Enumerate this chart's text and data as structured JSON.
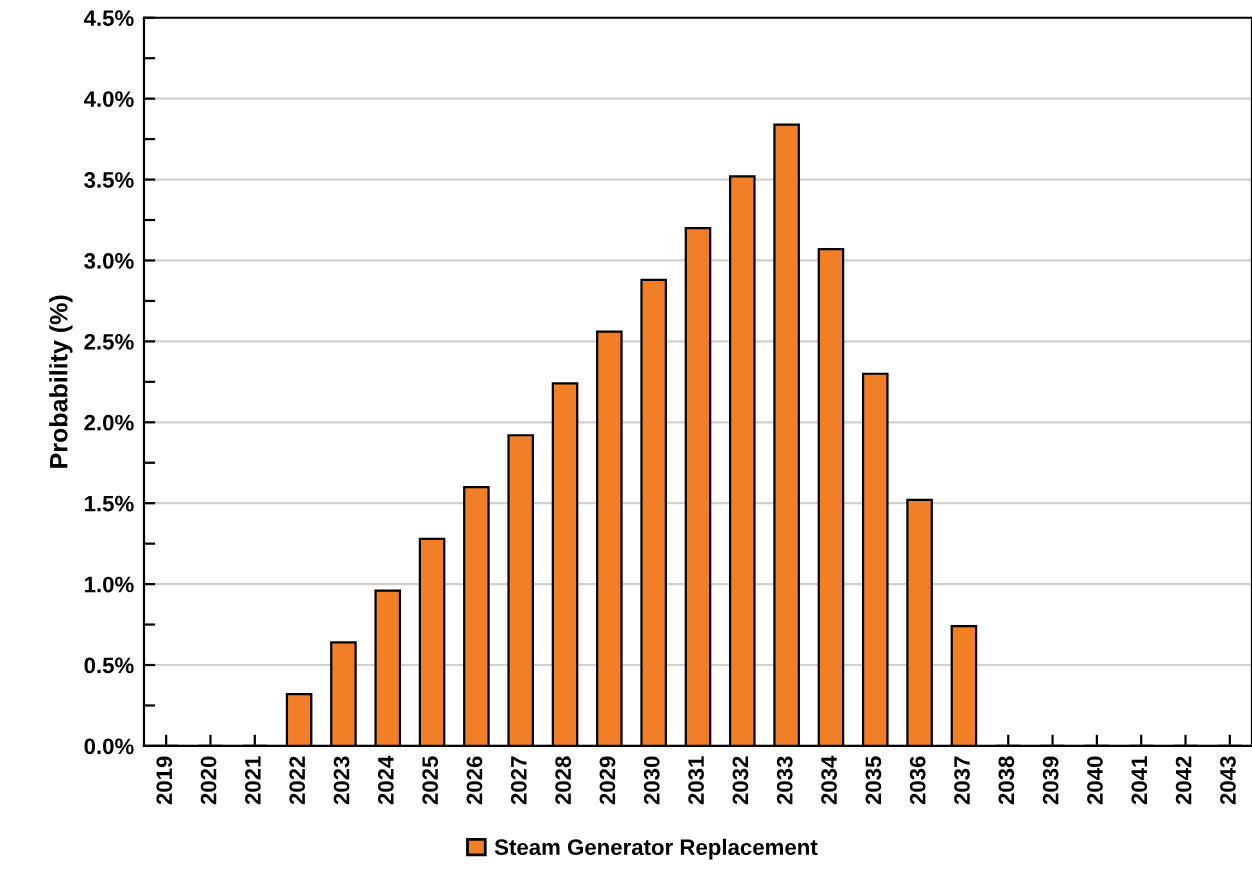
{
  "chart_data": {
    "type": "bar",
    "ylabel": "Probability (%)",
    "categories": [
      "2019",
      "2020",
      "2021",
      "2022",
      "2023",
      "2024",
      "2025",
      "2026",
      "2027",
      "2028",
      "2029",
      "2030",
      "2031",
      "2032",
      "2033",
      "2034",
      "2035",
      "2036",
      "2037",
      "2038",
      "2039",
      "2040",
      "2041",
      "2042",
      "2043"
    ],
    "series": [
      {
        "name": "Steam Generator Replacement",
        "color": "#f07f27",
        "values": [
          0,
          0,
          0,
          0.32,
          0.64,
          0.96,
          1.28,
          1.6,
          1.92,
          2.24,
          2.56,
          2.88,
          3.2,
          3.52,
          3.84,
          3.07,
          2.3,
          1.52,
          0.74,
          0,
          0,
          0,
          0,
          0,
          0
        ]
      }
    ],
    "ylim": [
      0,
      4.5
    ],
    "yticks": [
      {
        "value": 0,
        "label": "0.0%"
      },
      {
        "value": 0.25,
        "label": null
      },
      {
        "value": 0.5,
        "label": "0.5%"
      },
      {
        "value": 0.75,
        "label": null
      },
      {
        "value": 1,
        "label": "1.0%"
      },
      {
        "value": 1.25,
        "label": null
      },
      {
        "value": 1.5,
        "label": "1.5%"
      },
      {
        "value": 1.75,
        "label": null
      },
      {
        "value": 2,
        "label": "2.0%"
      },
      {
        "value": 2.25,
        "label": null
      },
      {
        "value": 2.5,
        "label": "2.5%"
      },
      {
        "value": 2.75,
        "label": null
      },
      {
        "value": 3,
        "label": "3.0%"
      },
      {
        "value": 3.25,
        "label": null
      },
      {
        "value": 3.5,
        "label": "3.5%"
      },
      {
        "value": 3.75,
        "label": null
      },
      {
        "value": 4,
        "label": "4.0%"
      },
      {
        "value": 4.25,
        "label": null
      },
      {
        "value": 4.5,
        "label": "4.5%"
      }
    ],
    "grid": "y",
    "legend": "bottom"
  }
}
